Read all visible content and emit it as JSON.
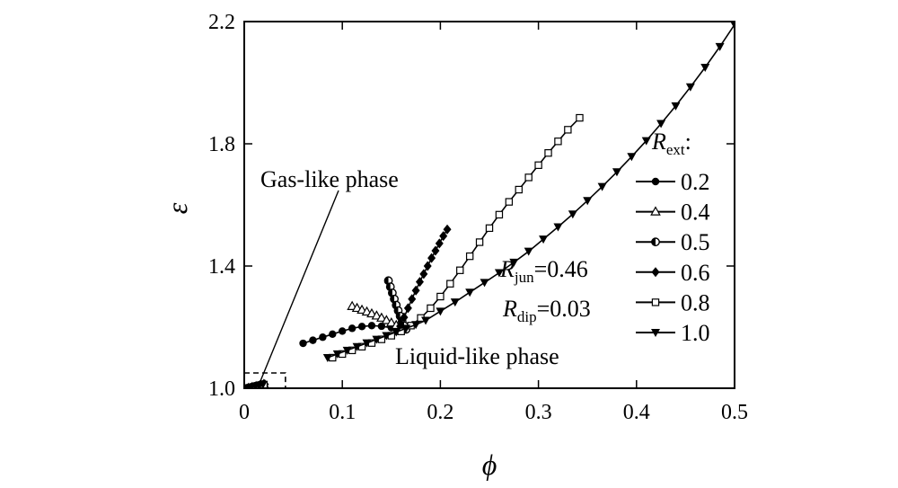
{
  "chart_data": {
    "type": "scatter",
    "title": "",
    "xlabel": "ϕ",
    "ylabel": "ε",
    "xlim": [
      0,
      0.5
    ],
    "ylim": [
      1.0,
      2.2
    ],
    "x_ticks": [
      "0",
      "0.1",
      "0.2",
      "0.3",
      "0.4",
      "0.5"
    ],
    "y_ticks": [
      "1.0",
      "1.4",
      "1.8",
      "2.2"
    ],
    "legend": {
      "title_base": "R",
      "title_sub": "ext",
      "title_suffix": ":",
      "placement": "right",
      "entries": [
        "0.2",
        "0.4",
        "0.5",
        "0.6",
        "0.8",
        "1.0"
      ]
    },
    "params": [
      {
        "base": "R",
        "sub": "jun",
        "value": "=0.46"
      },
      {
        "base": "R",
        "sub": "dip",
        "value": "=0.03"
      }
    ],
    "annotations": {
      "gas": "Gas-like phase",
      "liquid": "Liquid-like phase"
    },
    "gas_box": {
      "x": [
        0,
        0.042
      ],
      "y": [
        1.0,
        1.05
      ]
    },
    "series": [
      {
        "name": "0.2",
        "marker": "circle-filled",
        "points": [
          [
            0.002,
            1.0
          ],
          [
            0.006,
            1.003
          ],
          [
            0.01,
            1.006
          ],
          [
            0.014,
            1.009
          ],
          [
            0.018,
            1.012
          ],
          [
            0.06,
            1.147
          ],
          [
            0.07,
            1.157
          ],
          [
            0.08,
            1.167
          ],
          [
            0.09,
            1.177
          ],
          [
            0.1,
            1.187
          ],
          [
            0.11,
            1.196
          ],
          [
            0.12,
            1.202
          ],
          [
            0.13,
            1.205
          ],
          [
            0.14,
            1.203
          ],
          [
            0.15,
            1.198
          ],
          [
            0.155,
            1.194
          ]
        ]
      },
      {
        "name": "0.4",
        "marker": "triangle-open",
        "points": [
          [
            0.004,
            1.0
          ],
          [
            0.008,
            1.003
          ],
          [
            0.012,
            1.006
          ],
          [
            0.016,
            1.009
          ],
          [
            0.02,
            1.013
          ],
          [
            0.11,
            1.268
          ],
          [
            0.115,
            1.262
          ],
          [
            0.12,
            1.256
          ],
          [
            0.125,
            1.25
          ],
          [
            0.13,
            1.244
          ],
          [
            0.135,
            1.237
          ],
          [
            0.14,
            1.23
          ],
          [
            0.145,
            1.222
          ],
          [
            0.15,
            1.214
          ],
          [
            0.155,
            1.206
          ],
          [
            0.16,
            1.198
          ]
        ]
      },
      {
        "name": "0.5",
        "marker": "circle-half",
        "points": [
          [
            0.003,
            1.0
          ],
          [
            0.007,
            1.003
          ],
          [
            0.011,
            1.006
          ],
          [
            0.015,
            1.009
          ],
          [
            0.019,
            1.012
          ],
          [
            0.147,
            1.352
          ],
          [
            0.149,
            1.332
          ],
          [
            0.151,
            1.312
          ],
          [
            0.153,
            1.292
          ],
          [
            0.155,
            1.272
          ],
          [
            0.157,
            1.254
          ],
          [
            0.159,
            1.236
          ],
          [
            0.161,
            1.219
          ],
          [
            0.163,
            1.204
          ],
          [
            0.165,
            1.193
          ]
        ]
      },
      {
        "name": "0.6",
        "marker": "diamond-filled",
        "points": [
          [
            0.005,
            1.0
          ],
          [
            0.009,
            1.003
          ],
          [
            0.013,
            1.006
          ],
          [
            0.017,
            1.009
          ],
          [
            0.021,
            1.013
          ],
          [
            0.207,
            1.52
          ],
          [
            0.203,
            1.498
          ],
          [
            0.199,
            1.474
          ],
          [
            0.195,
            1.45
          ],
          [
            0.191,
            1.426
          ],
          [
            0.187,
            1.4
          ],
          [
            0.183,
            1.374
          ],
          [
            0.179,
            1.348
          ],
          [
            0.175,
            1.32
          ],
          [
            0.171,
            1.292
          ],
          [
            0.167,
            1.262
          ],
          [
            0.163,
            1.232
          ],
          [
            0.159,
            1.203
          ]
        ]
      },
      {
        "name": "0.8",
        "marker": "square-open",
        "points": [
          [
            0.004,
            1.0
          ],
          [
            0.008,
            1.003
          ],
          [
            0.012,
            1.006
          ],
          [
            0.016,
            1.009
          ],
          [
            0.02,
            1.012
          ],
          [
            0.09,
            1.1
          ],
          [
            0.1,
            1.112
          ],
          [
            0.11,
            1.124
          ],
          [
            0.12,
            1.136
          ],
          [
            0.13,
            1.148
          ],
          [
            0.14,
            1.16
          ],
          [
            0.15,
            1.172
          ],
          [
            0.16,
            1.186
          ],
          [
            0.17,
            1.205
          ],
          [
            0.18,
            1.23
          ],
          [
            0.19,
            1.262
          ],
          [
            0.2,
            1.3
          ],
          [
            0.21,
            1.342
          ],
          [
            0.22,
            1.386
          ],
          [
            0.23,
            1.432
          ],
          [
            0.24,
            1.478
          ],
          [
            0.25,
            1.524
          ],
          [
            0.26,
            1.568
          ],
          [
            0.27,
            1.61
          ],
          [
            0.28,
            1.65
          ],
          [
            0.29,
            1.69
          ],
          [
            0.3,
            1.73
          ],
          [
            0.31,
            1.77
          ],
          [
            0.32,
            1.808
          ],
          [
            0.33,
            1.846
          ],
          [
            0.342,
            1.885
          ]
        ]
      },
      {
        "name": "1.0",
        "marker": "triangle-down-filled",
        "points": [
          [
            0.003,
            1.0
          ],
          [
            0.007,
            1.003
          ],
          [
            0.011,
            1.006
          ],
          [
            0.015,
            1.009
          ],
          [
            0.019,
            1.012
          ],
          [
            0.085,
            1.1
          ],
          [
            0.095,
            1.112
          ],
          [
            0.105,
            1.124
          ],
          [
            0.115,
            1.136
          ],
          [
            0.125,
            1.148
          ],
          [
            0.135,
            1.16
          ],
          [
            0.145,
            1.172
          ],
          [
            0.155,
            1.184
          ],
          [
            0.165,
            1.196
          ],
          [
            0.175,
            1.208
          ],
          [
            0.185,
            1.222
          ],
          [
            0.2,
            1.252
          ],
          [
            0.215,
            1.282
          ],
          [
            0.23,
            1.314
          ],
          [
            0.245,
            1.346
          ],
          [
            0.26,
            1.378
          ],
          [
            0.275,
            1.412
          ],
          [
            0.29,
            1.448
          ],
          [
            0.305,
            1.488
          ],
          [
            0.32,
            1.528
          ],
          [
            0.335,
            1.57
          ],
          [
            0.35,
            1.614
          ],
          [
            0.365,
            1.66
          ],
          [
            0.38,
            1.708
          ],
          [
            0.395,
            1.758
          ],
          [
            0.41,
            1.81
          ],
          [
            0.425,
            1.866
          ],
          [
            0.44,
            1.924
          ],
          [
            0.455,
            1.986
          ],
          [
            0.47,
            2.05
          ],
          [
            0.485,
            2.118
          ],
          [
            0.5,
            2.19
          ]
        ]
      }
    ]
  }
}
